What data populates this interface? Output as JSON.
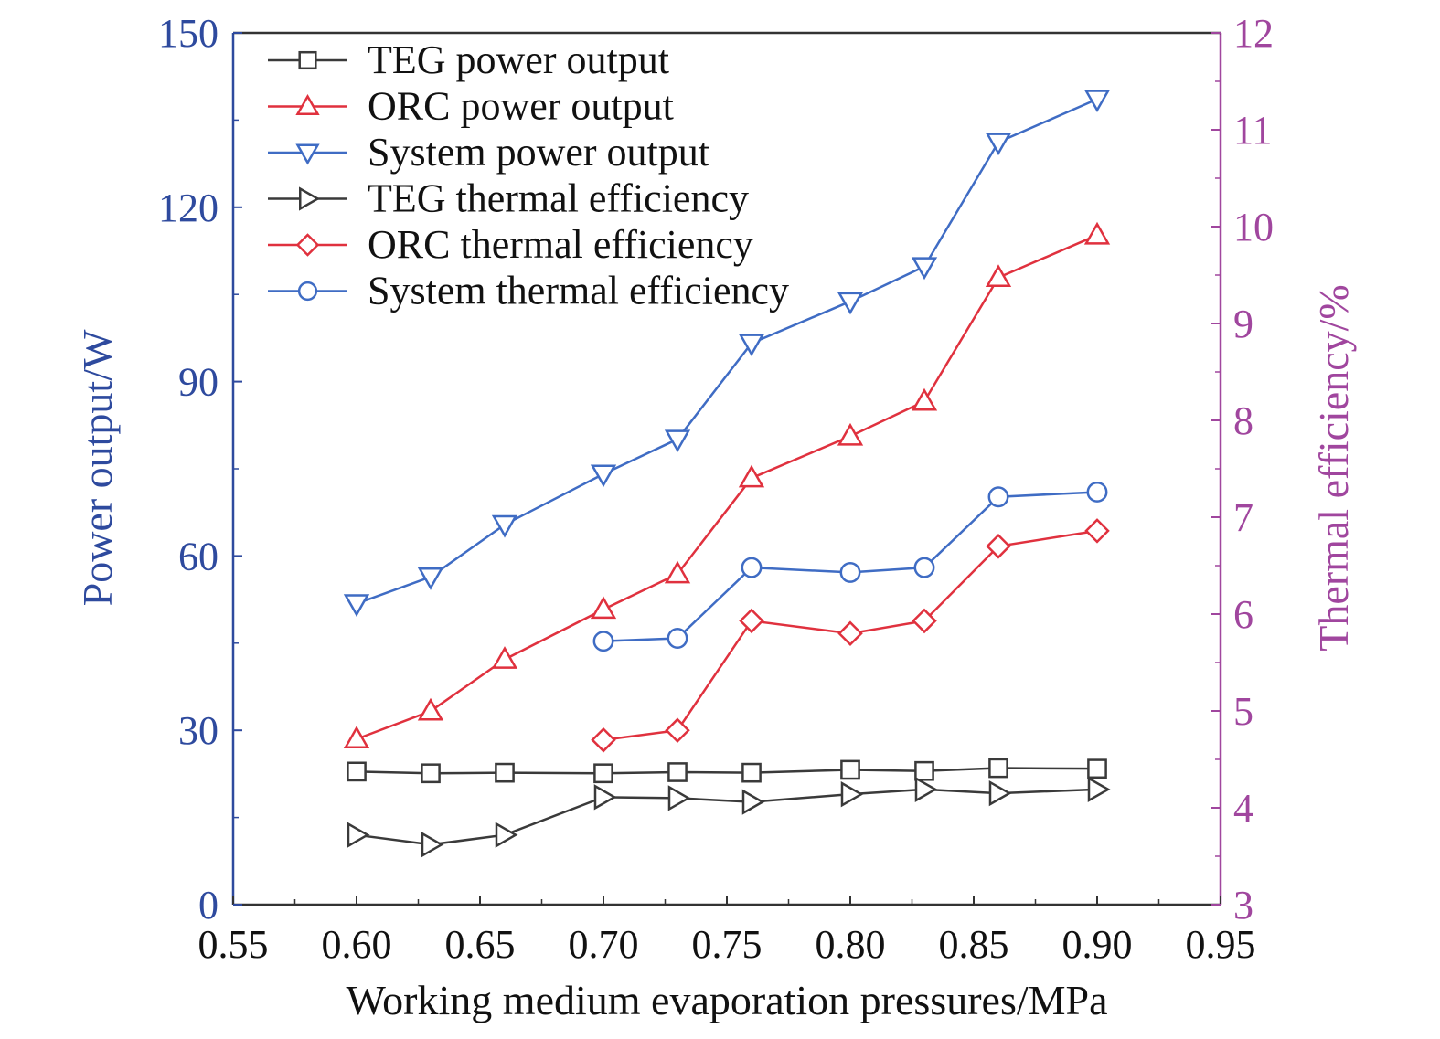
{
  "chart_data": {
    "type": "line",
    "title": "",
    "xlabel": "Working medium evaporation pressures/MPa",
    "ylabel_left": "Power output/W",
    "ylabel_right": "Thermal efficiency/%",
    "xlim": [
      0.55,
      0.95
    ],
    "ylim_left": [
      0,
      150
    ],
    "ylim_right": [
      3,
      12
    ],
    "x_ticks": [
      "0.55",
      "0.60",
      "0.65",
      "0.70",
      "0.75",
      "0.80",
      "0.85",
      "0.90",
      "0.95"
    ],
    "y_left_ticks": [
      "0",
      "30",
      "60",
      "90",
      "120",
      "150"
    ],
    "y_right_ticks": [
      "3",
      "4",
      "5",
      "6",
      "7",
      "8",
      "9",
      "10",
      "11",
      "12"
    ],
    "grid": false,
    "legend_position": "top-left",
    "colors": {
      "left_axis": "#2e4a9e",
      "right_axis": "#a0469e",
      "black_series": "#3a3a3a",
      "red_series": "#e0313e",
      "blue_series": "#3f6cc4"
    },
    "series": [
      {
        "name": "TEG power output",
        "axis": "left",
        "color": "#3a3a3a",
        "marker": "square",
        "x": [
          0.6,
          0.63,
          0.66,
          0.7,
          0.73,
          0.76,
          0.8,
          0.83,
          0.86,
          0.9
        ],
        "values": [
          22.9,
          22.6,
          22.7,
          22.6,
          22.8,
          22.7,
          23.2,
          23.0,
          23.5,
          23.4
        ]
      },
      {
        "name": "ORC power output",
        "axis": "left",
        "color": "#e0313e",
        "marker": "triangle-up",
        "x": [
          0.6,
          0.63,
          0.66,
          0.7,
          0.73,
          0.76,
          0.8,
          0.83,
          0.86,
          0.9
        ],
        "values": [
          28.5,
          33.3,
          42.2,
          50.8,
          56.9,
          73.4,
          80.6,
          86.6,
          107.9,
          115.2
        ]
      },
      {
        "name": "System power output",
        "axis": "left",
        "color": "#3f6cc4",
        "marker": "triangle-down",
        "x": [
          0.6,
          0.63,
          0.66,
          0.7,
          0.73,
          0.76,
          0.8,
          0.83,
          0.86,
          0.9
        ],
        "values": [
          51.8,
          56.4,
          65.4,
          74.1,
          80.1,
          96.6,
          103.8,
          109.8,
          131.2,
          138.6
        ]
      },
      {
        "name": "TEG thermal efficiency",
        "axis": "right",
        "color": "#3a3a3a",
        "marker": "triangle-right",
        "x": [
          0.6,
          0.63,
          0.66,
          0.7,
          0.73,
          0.76,
          0.8,
          0.83,
          0.86,
          0.9
        ],
        "values": [
          3.72,
          3.62,
          3.72,
          4.11,
          4.1,
          4.06,
          4.14,
          4.19,
          4.15,
          4.19
        ]
      },
      {
        "name": "ORC thermal efficiency",
        "axis": "right",
        "color": "#e0313e",
        "marker": "diamond",
        "x": [
          0.7,
          0.73,
          0.76,
          0.8,
          0.83,
          0.86,
          0.9
        ],
        "values": [
          4.7,
          4.8,
          5.93,
          5.8,
          5.93,
          6.7,
          6.86
        ]
      },
      {
        "name": "System thermal efficiency",
        "axis": "right",
        "color": "#3f6cc4",
        "marker": "circle",
        "x": [
          0.7,
          0.73,
          0.76,
          0.8,
          0.83,
          0.86,
          0.9
        ],
        "values": [
          5.72,
          5.75,
          6.48,
          6.43,
          6.48,
          7.21,
          7.26
        ]
      }
    ]
  }
}
